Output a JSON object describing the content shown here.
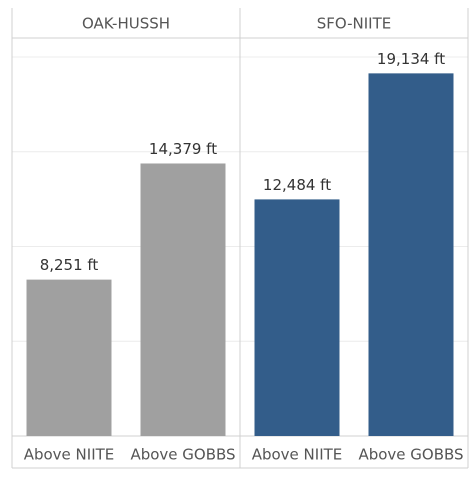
{
  "chart_data": {
    "type": "bar",
    "ylim": [
      0,
      21000
    ],
    "yticks": [
      0,
      5000,
      10000,
      15000,
      20000
    ],
    "grid": true,
    "panels": [
      {
        "title": "OAK-HUSSH",
        "categories": [
          "Above NIITE",
          "Above GOBBS"
        ],
        "values": [
          8251,
          14379
        ],
        "value_labels": [
          "8,251 ft",
          "14,379 ft"
        ],
        "color": "#a0a0a0"
      },
      {
        "title": "SFO-NIITE",
        "categories": [
          "Above NIITE",
          "Above GOBBS"
        ],
        "values": [
          12484,
          19134
        ],
        "value_labels": [
          "12,484 ft",
          "19,134 ft"
        ],
        "color": "#335d8a"
      }
    ]
  }
}
